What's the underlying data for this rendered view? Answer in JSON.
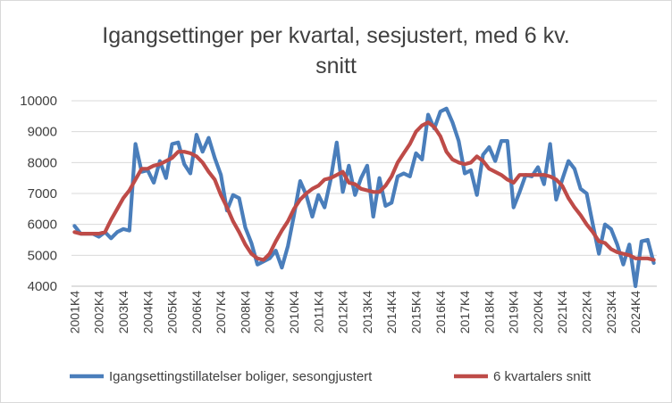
{
  "chart_data": {
    "type": "line",
    "title_lines": [
      "Igangsettinger per kvartal, sesjustert, med 6 kv.",
      "snitt"
    ],
    "xlabel": "",
    "ylabel": "",
    "ylim": [
      4000,
      10000
    ],
    "yticks": [
      4000,
      5000,
      6000,
      7000,
      8000,
      9000,
      10000
    ],
    "grid": true,
    "legend_position": "bottom",
    "x_tick_labels": [
      "2001K4",
      "2002K4",
      "2003K4",
      "2004K4",
      "2005K4",
      "2006K4",
      "2007K4",
      "2008K4",
      "2009K4",
      "2010K4",
      "2011K4",
      "2012K4",
      "2013K4",
      "2014K4",
      "2015K4",
      "2016K4",
      "2017K4",
      "2018K4",
      "2019K4",
      "2020K4",
      "2021K4",
      "2022K4",
      "2023K4",
      "2024K4"
    ],
    "first_period": "2001K4",
    "series": [
      {
        "name": "Igangsettingstillatelser boliger, sesongjustert",
        "color": "#4a7ebb",
        "values": [
          5950,
          5700,
          5700,
          5700,
          5600,
          5750,
          5550,
          5750,
          5850,
          5800,
          8600,
          7700,
          7750,
          7350,
          8050,
          7500,
          8600,
          8650,
          7950,
          7650,
          8900,
          8350,
          8800,
          8150,
          7600,
          6450,
          6950,
          6850,
          5900,
          5400,
          4700,
          4800,
          4900,
          5150,
          4600,
          5300,
          6300,
          7400,
          6950,
          6250,
          6950,
          6550,
          7450,
          8650,
          7050,
          7900,
          6950,
          7500,
          7900,
          6250,
          7500,
          6600,
          6700,
          7550,
          7650,
          7550,
          8300,
          8100,
          9550,
          9100,
          9650,
          9750,
          9300,
          8700,
          7650,
          7750,
          6950,
          8250,
          8500,
          8050,
          8700,
          8700,
          6550,
          7050,
          7600,
          7550,
          7850,
          7300,
          8600,
          6800,
          7450,
          8050,
          7800,
          7150,
          7000,
          6000,
          5050,
          6000,
          5850,
          5350,
          4700,
          5350,
          4000,
          5450,
          5500,
          4750
        ]
      },
      {
        "name": "6 kvartalers snitt",
        "color": "#be4b48",
        "values": [
          5750,
          5700,
          5700,
          5700,
          5700,
          5750,
          6150,
          6500,
          6850,
          7100,
          7450,
          7800,
          7800,
          7900,
          7950,
          8050,
          8150,
          8350,
          8350,
          8300,
          8200,
          8000,
          7700,
          7450,
          6950,
          6550,
          6100,
          5750,
          5350,
          5050,
          4900,
          4850,
          5050,
          5450,
          5800,
          6100,
          6500,
          6800,
          7000,
          7150,
          7250,
          7450,
          7500,
          7600,
          7700,
          7350,
          7300,
          7150,
          7100,
          7050,
          7050,
          7250,
          7550,
          8000,
          8300,
          8600,
          9000,
          9200,
          9300,
          9150,
          8850,
          8350,
          8100,
          8000,
          7950,
          8000,
          8200,
          8050,
          7800,
          7700,
          7600,
          7450,
          7350,
          7600,
          7600,
          7600,
          7600,
          7600,
          7550,
          7450,
          7250,
          6850,
          6550,
          6300,
          6000,
          5750,
          5450,
          5400,
          5200,
          5100,
          5050,
          5000,
          4900,
          4900,
          4900,
          4850
        ]
      }
    ]
  }
}
